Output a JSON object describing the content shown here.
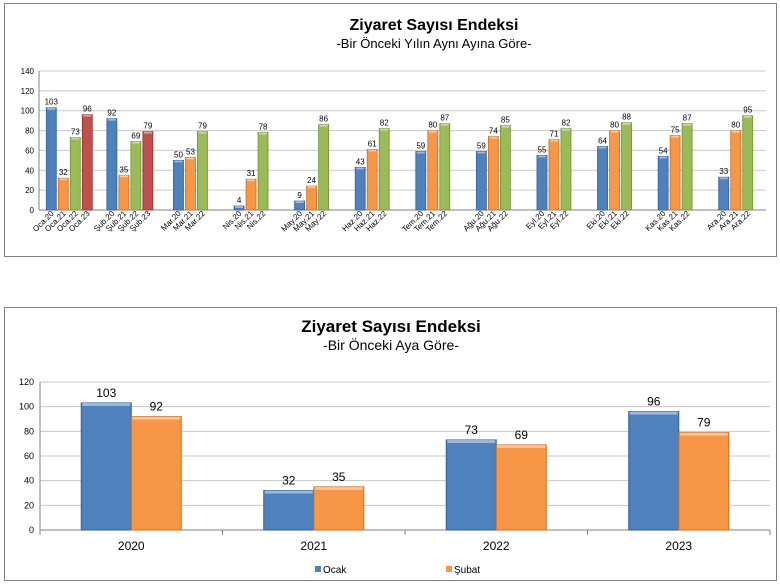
{
  "colors": {
    "blue": "#4f81bd",
    "blue_dark": "#2f5f9e",
    "orange": "#f79646",
    "orange_dark": "#c9701f",
    "green": "#9bbb59",
    "green_dark": "#6f9136",
    "red": "#c0504d",
    "red_dark": "#8f2f2c"
  },
  "chart_data": [
    {
      "type": "bar",
      "title": "Ziyaret Sayısı Endeksi",
      "subtitle": "-Bir Önceki Yılın Aynı Ayına Göre-",
      "ylim": [
        0,
        140
      ],
      "yticks": [
        0,
        20,
        40,
        60,
        80,
        100,
        120,
        140
      ],
      "grid": true,
      "legend": "none",
      "groups": [
        {
          "bars": [
            {
              "label": "Oca.20",
              "value": 103,
              "color": "blue"
            },
            {
              "label": "Oca.21",
              "value": 32,
              "color": "orange"
            },
            {
              "label": "Oca.22",
              "value": 73,
              "color": "green"
            },
            {
              "label": "Oca.23",
              "value": 96,
              "color": "red"
            }
          ]
        },
        {
          "bars": [
            {
              "label": "Şub.20",
              "value": 92,
              "color": "blue"
            },
            {
              "label": "Şub.21",
              "value": 35,
              "color": "orange"
            },
            {
              "label": "Şub.22",
              "value": 69,
              "color": "green"
            },
            {
              "label": "Şub.23",
              "value": 79,
              "color": "red"
            }
          ]
        },
        {
          "bars": [
            {
              "label": "Mar.20",
              "value": 50,
              "color": "blue"
            },
            {
              "label": "Mar.21",
              "value": 53,
              "color": "orange"
            },
            {
              "label": "Mar.22",
              "value": 79,
              "color": "green"
            }
          ]
        },
        {
          "bars": [
            {
              "label": "Nis.20",
              "value": 4,
              "color": "blue"
            },
            {
              "label": "Nis.21",
              "value": 31,
              "color": "orange"
            },
            {
              "label": "Nis.22",
              "value": 78,
              "color": "green"
            }
          ]
        },
        {
          "bars": [
            {
              "label": "May.20",
              "value": 9,
              "color": "blue"
            },
            {
              "label": "May.21",
              "value": 24,
              "color": "orange"
            },
            {
              "label": "May.22",
              "value": 86,
              "color": "green"
            }
          ]
        },
        {
          "bars": [
            {
              "label": "Haz.20",
              "value": 43,
              "color": "blue"
            },
            {
              "label": "Haz.21",
              "value": 61,
              "color": "orange"
            },
            {
              "label": "Haz.22",
              "value": 82,
              "color": "green"
            }
          ]
        },
        {
          "bars": [
            {
              "label": "Tem.20",
              "value": 59,
              "color": "blue"
            },
            {
              "label": "Tem.21",
              "value": 80,
              "color": "orange"
            },
            {
              "label": "Tem.22",
              "value": 87,
              "color": "green"
            }
          ]
        },
        {
          "bars": [
            {
              "label": "Ağu.20",
              "value": 59,
              "color": "blue"
            },
            {
              "label": "Ağu.21",
              "value": 74,
              "color": "orange"
            },
            {
              "label": "Ağu.22",
              "value": 85,
              "color": "green"
            }
          ]
        },
        {
          "bars": [
            {
              "label": "Eyl.20",
              "value": 55,
              "color": "blue"
            },
            {
              "label": "Eyl.21",
              "value": 71,
              "color": "orange"
            },
            {
              "label": "Eyl.22",
              "value": 82,
              "color": "green"
            }
          ]
        },
        {
          "bars": [
            {
              "label": "Eki.20",
              "value": 64,
              "color": "blue"
            },
            {
              "label": "Eki.21",
              "value": 80,
              "color": "orange"
            },
            {
              "label": "Eki.22",
              "value": 88,
              "color": "green"
            }
          ]
        },
        {
          "bars": [
            {
              "label": "Kas.20",
              "value": 54,
              "color": "blue"
            },
            {
              "label": "Kas.21",
              "value": 75,
              "color": "orange"
            },
            {
              "label": "Kas.22",
              "value": 87,
              "color": "green"
            }
          ]
        },
        {
          "bars": [
            {
              "label": "Ara.20",
              "value": 33,
              "color": "blue"
            },
            {
              "label": "Ara.21",
              "value": 80,
              "color": "orange"
            },
            {
              "label": "Ara.22",
              "value": 95,
              "color": "green"
            }
          ]
        }
      ]
    },
    {
      "type": "bar",
      "title": "Ziyaret Sayısı Endeksi",
      "subtitle": "-Bir Önceki Aya Göre-",
      "categories": [
        "2020",
        "2021",
        "2022",
        "2023"
      ],
      "series": [
        {
          "name": "Ocak",
          "values": [
            103,
            32,
            73,
            96
          ],
          "color": "blue"
        },
        {
          "name": "Şubat",
          "values": [
            92,
            35,
            69,
            79
          ],
          "color": "orange"
        }
      ],
      "ylim": [
        0,
        120
      ],
      "yticks": [
        0,
        20,
        40,
        60,
        80,
        100,
        120
      ],
      "grid": true,
      "legend": "bottom"
    }
  ]
}
